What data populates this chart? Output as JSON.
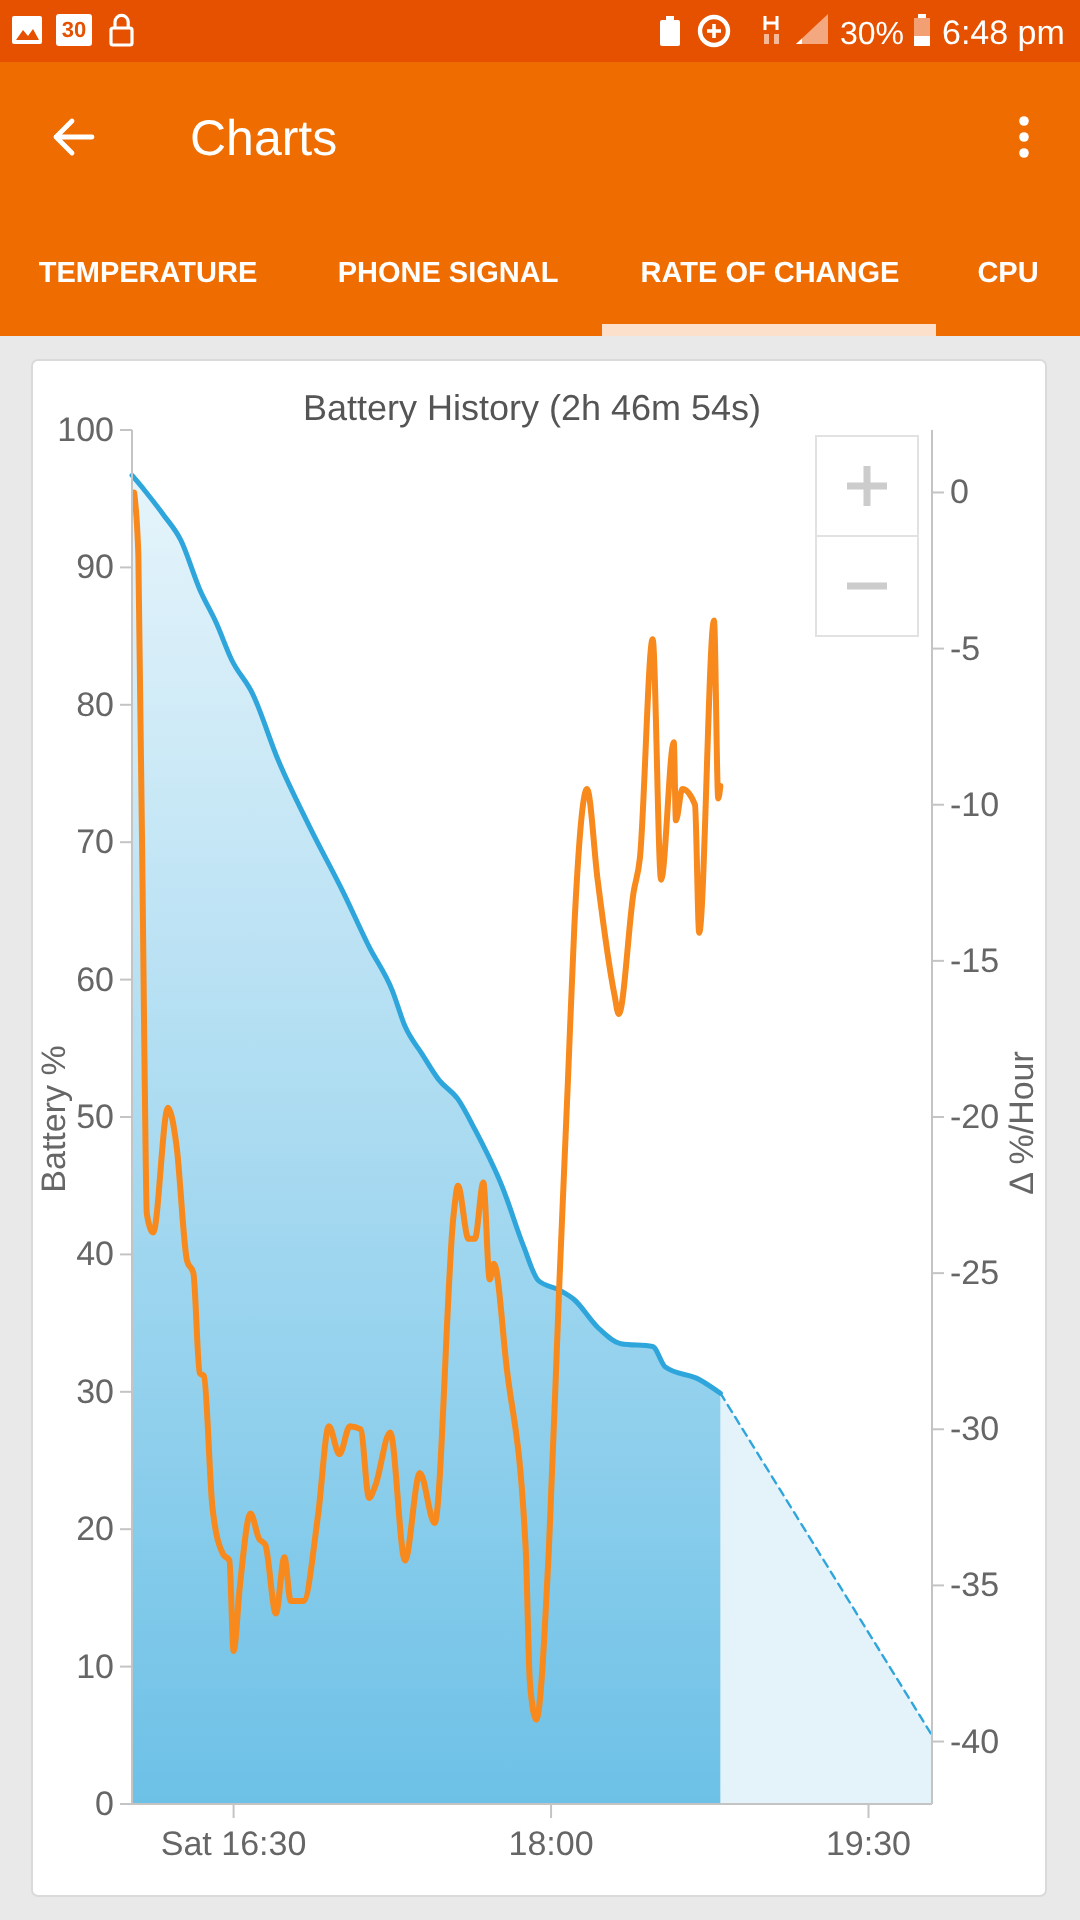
{
  "chart_data": {
    "type": "area",
    "title": "Battery History (2h 46m 54s)",
    "ylabel": "Battery %",
    "y2label": "Δ %/Hour",
    "xlim": [
      16.02,
      19.8
    ],
    "xticks": [
      {
        "value": 16.5,
        "label": "Sat 16:30"
      },
      {
        "value": 18,
        "label": "18:00"
      },
      {
        "value": 19.5,
        "label": "19:30"
      }
    ],
    "ylim": [
      0,
      100
    ],
    "yticks": [
      0,
      10,
      20,
      30,
      40,
      50,
      60,
      70,
      80,
      90,
      100
    ],
    "y2lim": [
      -42,
      2
    ],
    "y2ticks": [
      0,
      -5,
      -10,
      -15,
      -20,
      -25,
      -30,
      -35,
      -40
    ],
    "series": [
      {
        "color": "#2ea6dc",
        "x": [
          16.02,
          16.08,
          16.17,
          16.25,
          16.34,
          16.42,
          16.49,
          16.59,
          16.71,
          16.86,
          17.02,
          17.14,
          17.25,
          17.31,
          17.39,
          17.47,
          17.56,
          17.64,
          17.77,
          17.87,
          17.94,
          18.04,
          18.11,
          18.22,
          18.33,
          18.48,
          18.54,
          18.7,
          18.8
        ],
        "values": [
          96.7,
          95.6,
          93.8,
          92.0,
          88.4,
          85.9,
          83.3,
          80.8,
          76.0,
          71.1,
          66.3,
          62.4,
          59.2,
          56.6,
          54.6,
          52.7,
          51.3,
          49.1,
          44.9,
          40.6,
          38.1,
          37.4,
          36.7,
          34.7,
          33.5,
          33.3,
          31.8,
          30.9,
          29.9
        ]
      },
      {
        "color": "#2ea6dc",
        "line_style": "dashed",
        "x": [
          18.8,
          19.8
        ],
        "values": [
          29.9,
          5.0
        ]
      },
      {
        "type": "line",
        "axis": "y2",
        "color": "#f7891d",
        "x": [
          16.03,
          16.05,
          16.08,
          16.09,
          16.12,
          16.19,
          16.23,
          16.28,
          16.31,
          16.34,
          16.36,
          16.4,
          16.45,
          16.48,
          16.5,
          16.53,
          16.58,
          16.62,
          16.65,
          16.7,
          16.74,
          16.77,
          16.83,
          16.9,
          16.95,
          17.0,
          17.05,
          17.1,
          17.14,
          17.17,
          17.24,
          17.31,
          17.38,
          17.45,
          17.54,
          17.56,
          17.61,
          17.64,
          17.68,
          17.71,
          17.73,
          17.79,
          17.88,
          17.9,
          17.93,
          17.99,
          18.04,
          18.08,
          18.11,
          18.17,
          18.22,
          18.3,
          18.32,
          18.39,
          18.42,
          18.48,
          18.52,
          18.58,
          18.59,
          18.62,
          18.68,
          18.7,
          18.77,
          18.79,
          18.8
        ],
        "values": [
          0.0,
          -2.0,
          -18.8,
          -23.1,
          -23.7,
          -19.7,
          -20.9,
          -24.6,
          -25.0,
          -28.2,
          -28.3,
          -32.5,
          -34.0,
          -34.2,
          -37.1,
          -35.0,
          -32.7,
          -33.5,
          -33.7,
          -35.9,
          -34.1,
          -35.5,
          -35.5,
          -32.7,
          -29.9,
          -30.8,
          -29.9,
          -30.0,
          -32.2,
          -31.8,
          -30.1,
          -34.2,
          -31.4,
          -33.0,
          -23.1,
          -22.2,
          -23.9,
          -23.9,
          -22.1,
          -25.2,
          -24.7,
          -28.0,
          -33.8,
          -38.1,
          -39.3,
          -33.8,
          -25.2,
          -18.8,
          -13.9,
          -9.5,
          -12.4,
          -16.1,
          -16.7,
          -12.8,
          -11.7,
          -4.7,
          -12.4,
          -8.0,
          -10.5,
          -9.5,
          -10.0,
          -14.1,
          -4.1,
          -9.8,
          -9.4
        ]
      }
    ],
    "annotations": [
      "Charts",
      "TEMPERATURE",
      "PHONE SIGNAL",
      "RATE OF CHANGE",
      "CPU",
      "30",
      "30%",
      "6:48 pm"
    ]
  }
}
